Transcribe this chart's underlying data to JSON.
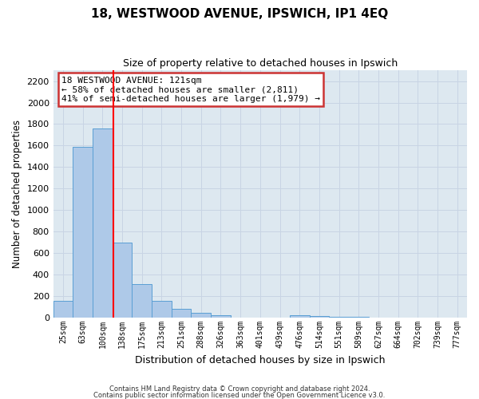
{
  "title": "18, WESTWOOD AVENUE, IPSWICH, IP1 4EQ",
  "subtitle": "Size of property relative to detached houses in Ipswich",
  "xlabel": "Distribution of detached houses by size in Ipswich",
  "ylabel": "Number of detached properties",
  "bar_labels": [
    "25sqm",
    "63sqm",
    "100sqm",
    "138sqm",
    "175sqm",
    "213sqm",
    "251sqm",
    "288sqm",
    "326sqm",
    "363sqm",
    "401sqm",
    "439sqm",
    "476sqm",
    "514sqm",
    "551sqm",
    "589sqm",
    "627sqm",
    "664sqm",
    "702sqm",
    "739sqm",
    "777sqm"
  ],
  "bar_values": [
    160,
    1585,
    1760,
    700,
    315,
    155,
    80,
    45,
    25,
    0,
    0,
    0,
    20,
    15,
    10,
    10,
    0,
    0,
    0,
    0,
    0
  ],
  "bar_color": "#aec9e8",
  "bar_edge_color": "#5a9fd4",
  "bar_linewidth": 0.7,
  "grid_color": "#c8d4e4",
  "ax_bg_color": "#dde8f0",
  "fig_bg_color": "#ffffff",
  "annotation_line1": "18 WESTWOOD AVENUE: 121sqm",
  "annotation_line2": "← 58% of detached houses are smaller (2,811)",
  "annotation_line3": "41% of semi-detached houses are larger (1,979) →",
  "ann_box_edge": "#cc3333",
  "red_line_x": 2.55,
  "ylim": [
    0,
    2300
  ],
  "yticks": [
    0,
    200,
    400,
    600,
    800,
    1000,
    1200,
    1400,
    1600,
    1800,
    2000,
    2200
  ],
  "footer_line1": "Contains HM Land Registry data © Crown copyright and database right 2024.",
  "footer_line2": "Contains public sector information licensed under the Open Government Licence v3.0."
}
